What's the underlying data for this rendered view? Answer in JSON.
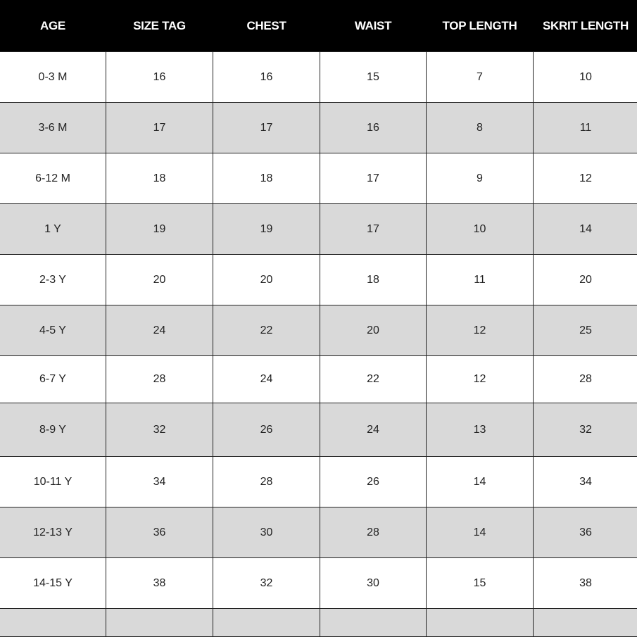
{
  "table": {
    "headers": [
      "AGE",
      "SIZE TAG",
      "CHEST",
      "WAIST",
      "TOP LENGTH",
      "SKRIT LENGTH"
    ],
    "rows": [
      [
        "0-3 M",
        "16",
        "16",
        "15",
        "7",
        "10"
      ],
      [
        "3-6 M",
        "17",
        "17",
        "16",
        "8",
        "11"
      ],
      [
        "6-12 M",
        "18",
        "18",
        "17",
        "9",
        "12"
      ],
      [
        "1 Y",
        "19",
        "19",
        "17",
        "10",
        "14"
      ],
      [
        "2-3 Y",
        "20",
        "20",
        "18",
        "11",
        "20"
      ],
      [
        "4-5 Y",
        "24",
        "22",
        "20",
        "12",
        "25"
      ],
      [
        "6-7 Y",
        "28",
        "24",
        "22",
        "12",
        "28"
      ],
      [
        "8-9 Y",
        "32",
        "26",
        "24",
        "13",
        "32"
      ],
      [
        "10-11 Y",
        "34",
        "28",
        "26",
        "14",
        "34"
      ],
      [
        "12-13 Y",
        "36",
        "30",
        "28",
        "14",
        "36"
      ],
      [
        "14-15 Y",
        "38",
        "32",
        "30",
        "15",
        "38"
      ],
      [
        "",
        "",
        "",
        "",
        "",
        ""
      ]
    ],
    "colors": {
      "header_bg": "#000000",
      "header_text": "#ffffff",
      "alt_row_bg": "#d9d9d9"
    }
  }
}
